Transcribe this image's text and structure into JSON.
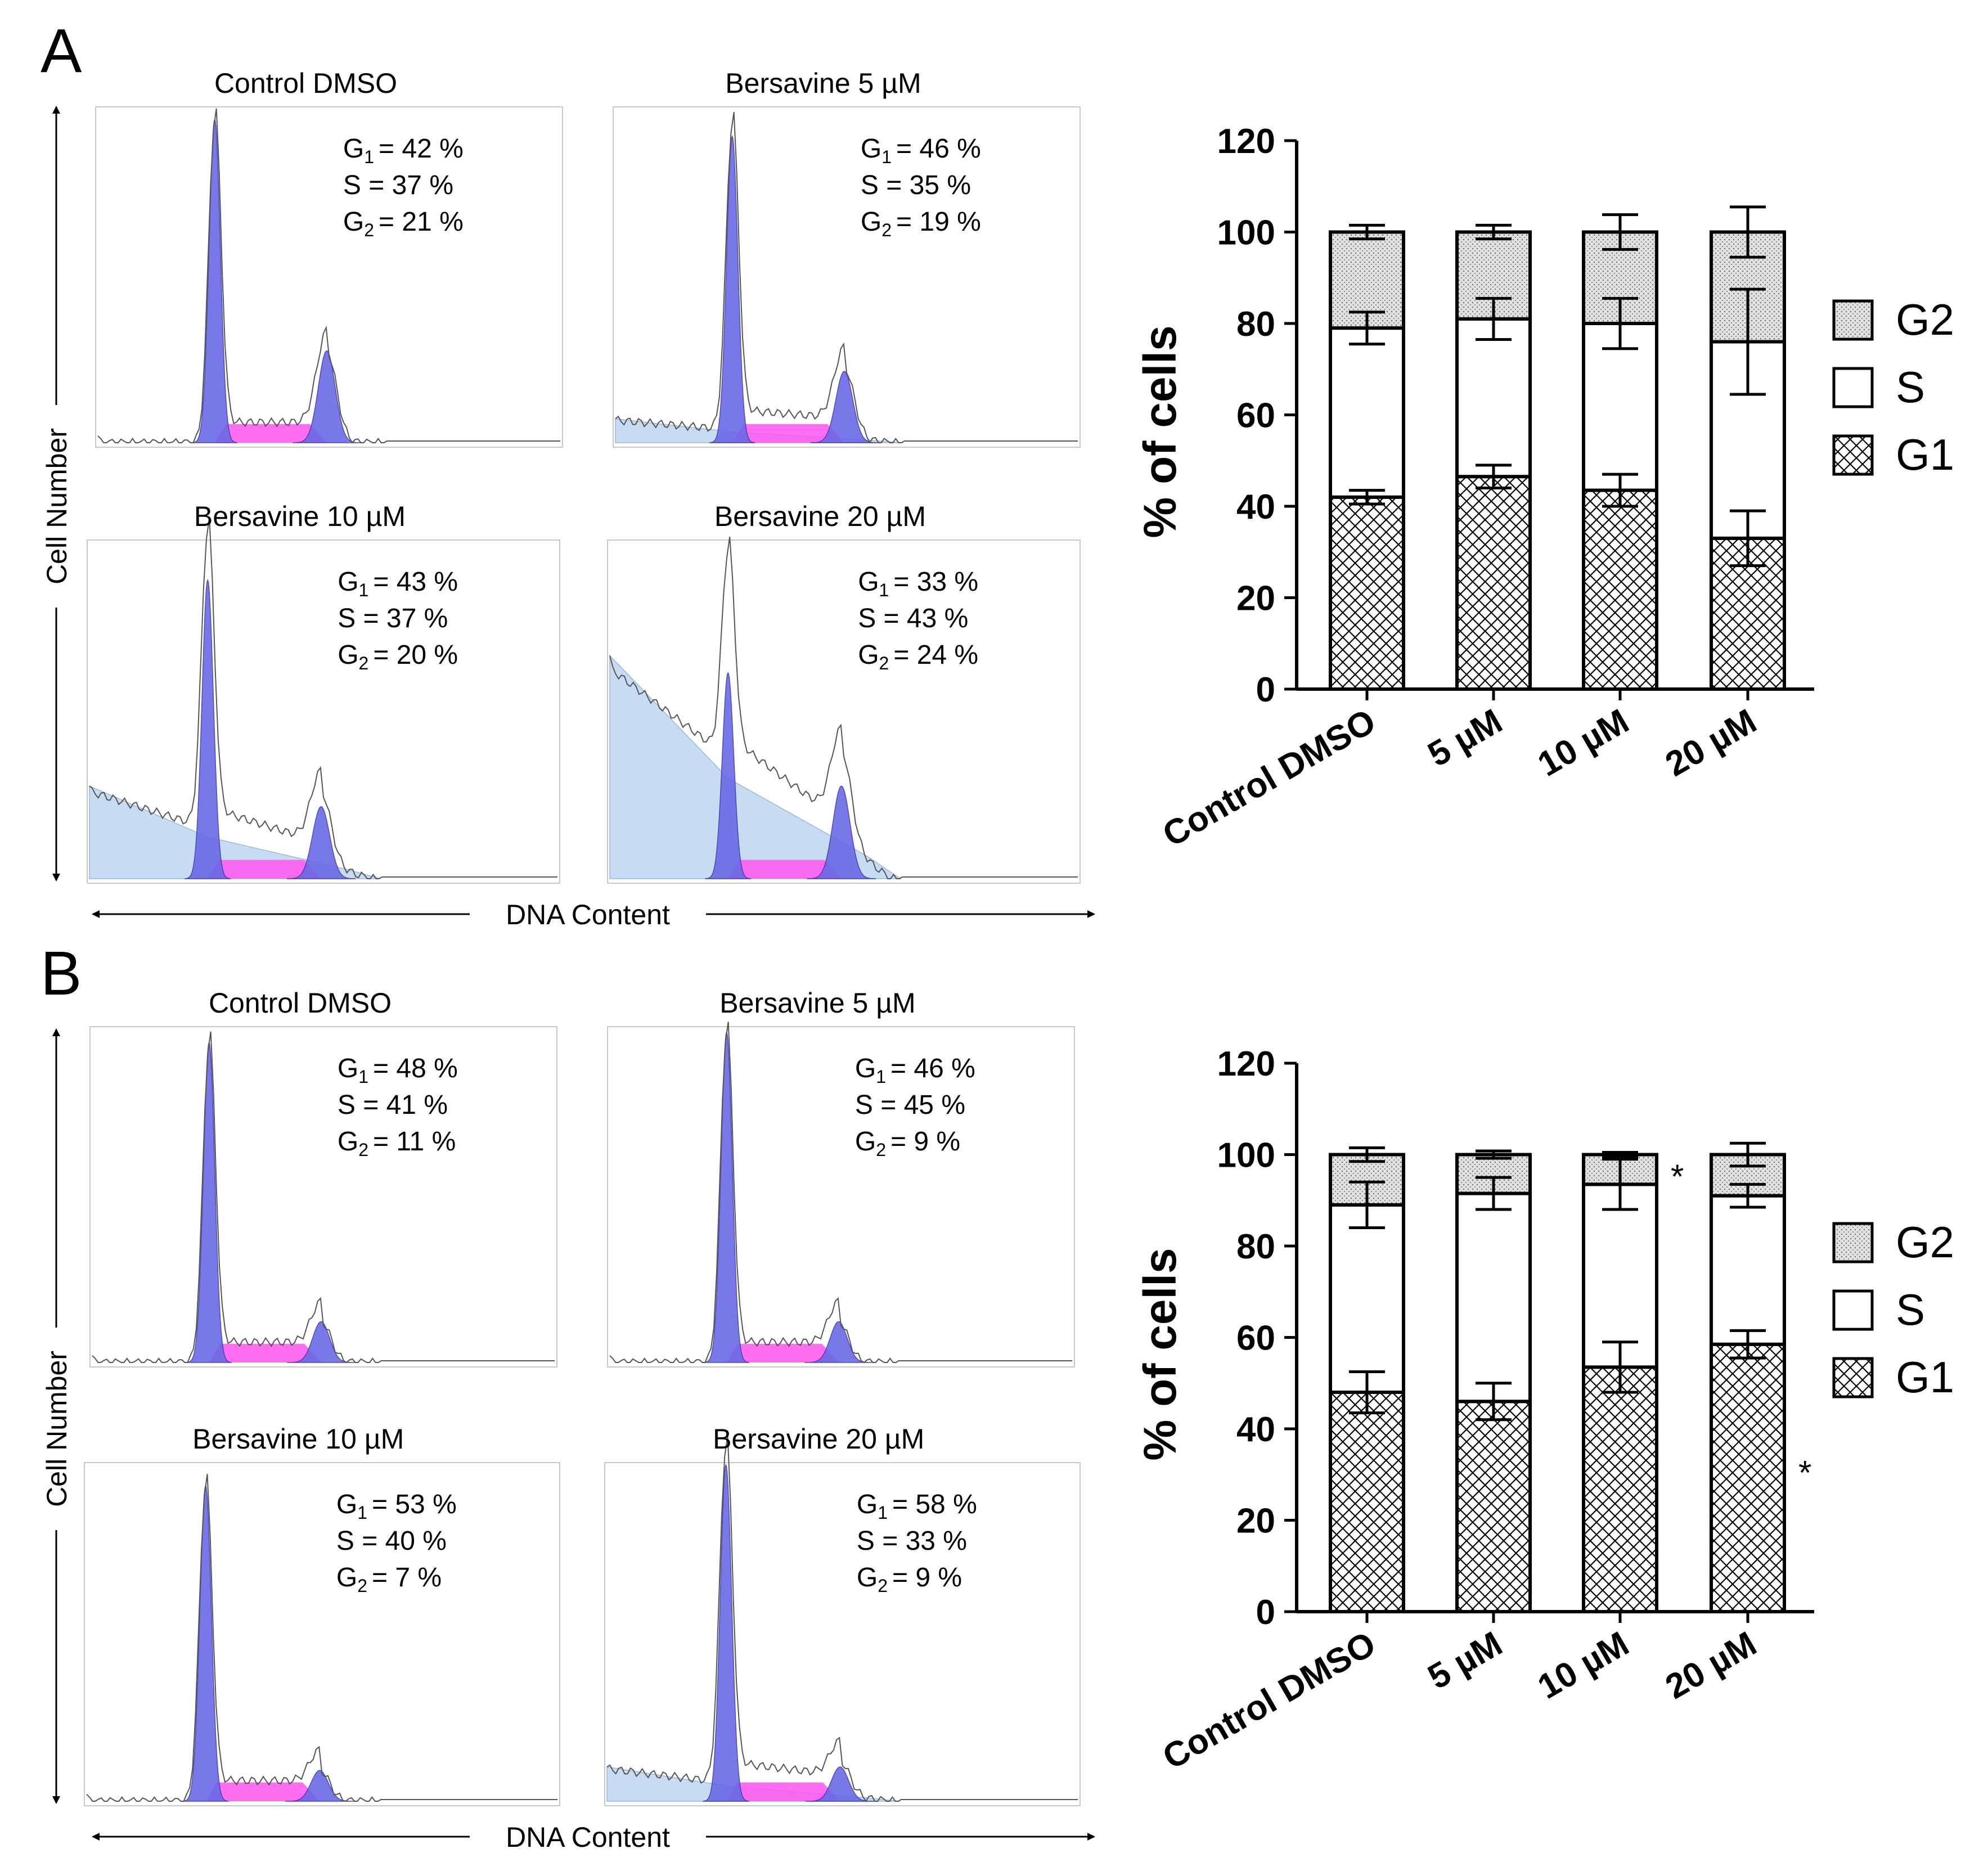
{
  "colors": {
    "g1_peak": "#6a6ae6",
    "g2_peak": "#6a6ae6",
    "s_phase": "#ff55ee",
    "debris": "#c7dcf2",
    "trace": "#555555",
    "bar_stroke": "#000000",
    "g2_fill": "#dddddd"
  },
  "panels": [
    {
      "letter": "A",
      "x_axis_label": "DNA Content",
      "y_axis_label": "Cell Number",
      "histograms": [
        {
          "title": "Control DMSO",
          "g1_label": "G",
          "sub": "1",
          "stats": [
            "= 42 %",
            "S = 37 %",
            "= 21 %"
          ],
          "g2_label": "G",
          "g2_sub": "2",
          "g1_height": 0.95,
          "g2_height": 0.27,
          "debris": 0.0
        },
        {
          "title": "Bersavine 5 µM",
          "g1_label": "G",
          "sub": "1",
          "stats": [
            "= 46 %",
            "S = 35 %",
            "= 19 %"
          ],
          "g2_label": "G",
          "g2_sub": "2",
          "g1_height": 0.9,
          "g2_height": 0.21,
          "debris": 0.07
        },
        {
          "title": "Bersavine 10 µM",
          "g1_label": "G",
          "sub": "1",
          "stats": [
            "= 43 %",
            "S = 37 %",
            "= 20 %"
          ],
          "g2_label": "G",
          "g2_sub": "2",
          "g1_height": 0.87,
          "g2_height": 0.21,
          "debris": 0.27
        },
        {
          "title": "Bersavine 20 µM",
          "g1_label": "G",
          "sub": "1",
          "stats": [
            "= 33 %",
            "S = 43 %",
            "= 24 %"
          ],
          "g2_label": "G",
          "g2_sub": "2",
          "g1_height": 0.6,
          "g2_height": 0.27,
          "debris": 0.65
        }
      ],
      "chart_data": {
        "type": "bar",
        "stacked": true,
        "categories": [
          "Control DMSO",
          "5 µM",
          "10 µM",
          "20 µM"
        ],
        "series": [
          {
            "name": "G1",
            "values": [
              42,
              46.5,
              43.5,
              33
            ],
            "errors": [
              1.5,
              2.5,
              3.5,
              6
            ]
          },
          {
            "name": "S",
            "values": [
              37,
              34.5,
              36.5,
              43
            ],
            "errors": [
              3.5,
              4.5,
              5.5,
              11.5
            ]
          },
          {
            "name": "G2",
            "values": [
              21,
              19,
              20,
              24
            ],
            "errors": [
              1.5,
              1.5,
              3.8,
              5.5
            ]
          }
        ],
        "legend": [
          "G2",
          "S",
          "G1"
        ],
        "ylabel": "% of cells",
        "ylim": [
          0,
          120
        ],
        "yticks": [
          "0",
          "20",
          "40",
          "60",
          "80",
          "100",
          "120"
        ],
        "grid": false,
        "legend_position": "right",
        "annotations": []
      }
    },
    {
      "letter": "B",
      "x_axis_label": "DNA Content",
      "y_axis_label": "Cell Number",
      "histograms": [
        {
          "title": "Control DMSO",
          "g1_label": "G",
          "sub": "1",
          "stats": [
            "= 48 %",
            "S = 41 %",
            "= 11 %"
          ],
          "g2_label": "G",
          "g2_sub": "2",
          "g1_height": 0.94,
          "g2_height": 0.12,
          "debris": 0.0
        },
        {
          "title": "Bersavine 5 µM",
          "g1_label": "G",
          "sub": "1",
          "stats": [
            "= 46 %",
            "S = 45 %",
            "= 9 %"
          ],
          "g2_label": "G",
          "g2_sub": "2",
          "g1_height": 0.97,
          "g2_height": 0.12,
          "debris": 0.0
        },
        {
          "title": "Bersavine 10 µM",
          "g1_label": "G",
          "sub": "1",
          "stats": [
            "= 53 %",
            "S = 40 %",
            "= 7 %"
          ],
          "g2_label": "G",
          "g2_sub": "2",
          "g1_height": 0.92,
          "g2_height": 0.09,
          "debris": 0.0
        },
        {
          "title": "Bersavine 20 µM",
          "g1_label": "G",
          "sub": "1",
          "stats": [
            "= 58 %",
            "S = 33 %",
            "= 9 %"
          ],
          "g2_label": "G",
          "g2_sub": "2",
          "g1_height": 0.98,
          "g2_height": 0.1,
          "debris": 0.1
        }
      ],
      "chart_data": {
        "type": "bar",
        "stacked": true,
        "categories": [
          "Control DMSO",
          "5 µM",
          "10 µM",
          "20 µM"
        ],
        "series": [
          {
            "name": "G1",
            "values": [
              48,
              46,
              53.5,
              58.5
            ],
            "errors": [
              4.5,
              4,
              5.5,
              3
            ]
          },
          {
            "name": "S",
            "values": [
              41,
              45.5,
              40,
              32.5
            ],
            "errors": [
              5,
              3.5,
              5.5,
              2.5
            ]
          },
          {
            "name": "G2",
            "values": [
              11,
              8.5,
              6.5,
              9
            ],
            "errors": [
              1.5,
              0.8,
              0.5,
              2.5
            ]
          }
        ],
        "legend": [
          "G2",
          "S",
          "G1"
        ],
        "ylabel": "% of cells",
        "ylim": [
          0,
          120
        ],
        "yticks": [
          "0",
          "20",
          "40",
          "60",
          "80",
          "100",
          "120"
        ],
        "grid": false,
        "legend_position": "right",
        "annotations": [
          {
            "text": "*",
            "category": "10 µM",
            "series": "G2"
          },
          {
            "text": "*",
            "category": "20 µM",
            "series": "G1"
          }
        ]
      }
    }
  ]
}
